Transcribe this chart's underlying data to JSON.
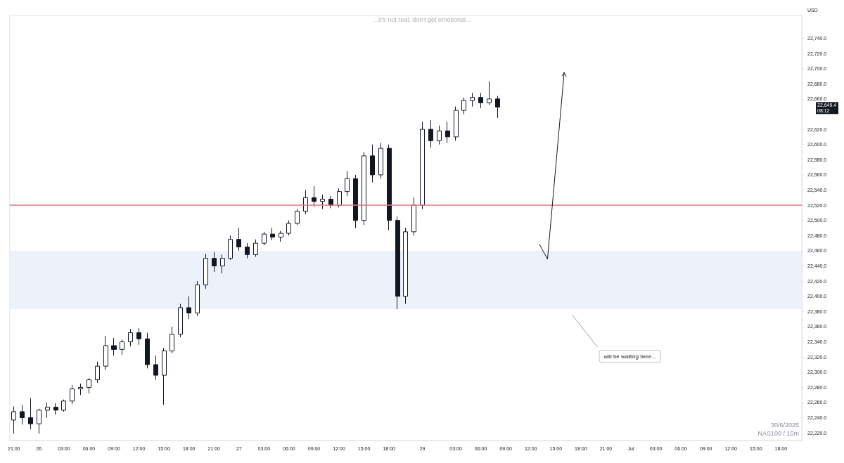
{
  "chart_data": {
    "type": "candlestick",
    "title": "...it's not real, don't get emotional...",
    "ylabel": "USD",
    "color": "#131722",
    "categories": [
      "21:00",
      null,
      null,
      "26",
      null,
      null,
      "03:00",
      null,
      null,
      "06:00",
      null,
      null,
      "09:00",
      null,
      null,
      "12:00",
      null,
      null,
      "15:00",
      null,
      null,
      "18:00",
      null,
      null,
      "21:00",
      null,
      null,
      "27",
      null,
      null,
      "03:00",
      null,
      null,
      "06:00",
      null,
      null,
      "09:00",
      null,
      null,
      "12:00",
      null,
      null,
      "15:00",
      null,
      null,
      "18:00",
      null,
      null,
      null,
      "29",
      null,
      null,
      null,
      "03:00",
      null,
      null,
      "06:00",
      null,
      null,
      "09:00",
      null,
      null,
      "12:00",
      null,
      null,
      "15:00",
      null,
      null,
      "18:00",
      null,
      null,
      "21:00",
      null,
      null,
      "Jul",
      null,
      null,
      "03:00",
      null,
      null,
      "06:00",
      null,
      null,
      "09:00",
      null,
      null,
      "12:00",
      null,
      null,
      "15:00",
      null,
      null,
      "18:00",
      null,
      null
    ],
    "ohlc": [
      [
        22237,
        22255,
        22219,
        22248
      ],
      [
        22248,
        22257,
        22231,
        22240
      ],
      [
        22240,
        22266,
        22225,
        22232
      ],
      [
        22232,
        22252,
        22219,
        22250
      ],
      [
        22250,
        22260,
        22240,
        22254
      ],
      [
        22254,
        22259,
        22244,
        22250
      ],
      [
        22250,
        22264,
        22248,
        22262
      ],
      [
        22262,
        22283,
        22258,
        22278
      ],
      [
        22278,
        22285,
        22270,
        22280
      ],
      [
        22280,
        22292,
        22272,
        22290
      ],
      [
        22290,
        22314,
        22286,
        22308
      ],
      [
        22308,
        22348,
        22303,
        22335
      ],
      [
        22335,
        22345,
        22322,
        22330
      ],
      [
        22330,
        22343,
        22323,
        22340
      ],
      [
        22340,
        22357,
        22334,
        22352
      ],
      [
        22352,
        22358,
        22336,
        22344
      ],
      [
        22344,
        22352,
        22305,
        22310
      ],
      [
        22310,
        22322,
        22290,
        22296
      ],
      [
        22296,
        22332,
        22257,
        22328
      ],
      [
        22328,
        22360,
        22325,
        22350
      ],
      [
        22350,
        22390,
        22346,
        22385
      ],
      [
        22385,
        22400,
        22370,
        22378
      ],
      [
        22378,
        22420,
        22374,
        22415
      ],
      [
        22415,
        22456,
        22410,
        22450
      ],
      [
        22450,
        22458,
        22432,
        22440
      ],
      [
        22440,
        22455,
        22430,
        22450
      ],
      [
        22450,
        22480,
        22448,
        22475
      ],
      [
        22475,
        22490,
        22460,
        22465
      ],
      [
        22465,
        22470,
        22450,
        22455
      ],
      [
        22455,
        22475,
        22452,
        22470
      ],
      [
        22470,
        22485,
        22467,
        22482
      ],
      [
        22482,
        22490,
        22474,
        22478
      ],
      [
        22478,
        22486,
        22472,
        22483
      ],
      [
        22483,
        22500,
        22480,
        22496
      ],
      [
        22496,
        22515,
        22494,
        22512
      ],
      [
        22512,
        22540,
        22508,
        22530
      ],
      [
        22530,
        22545,
        22518,
        22525
      ],
      [
        22525,
        22534,
        22515,
        22528
      ],
      [
        22528,
        22532,
        22516,
        22520
      ],
      [
        22520,
        22542,
        22517,
        22538
      ],
      [
        22538,
        22565,
        22532,
        22555
      ],
      [
        22555,
        22560,
        22490,
        22500
      ],
      [
        22500,
        22590,
        22494,
        22585
      ],
      [
        22585,
        22600,
        22550,
        22560
      ],
      [
        22560,
        22602,
        22555,
        22595
      ],
      [
        22595,
        22600,
        22487,
        22500
      ],
      [
        22500,
        22505,
        22383,
        22400
      ],
      [
        22400,
        22490,
        22390,
        22485
      ],
      [
        22485,
        22530,
        22480,
        22520
      ],
      [
        22520,
        22630,
        22515,
        22620
      ],
      [
        22620,
        22632,
        22596,
        22605
      ],
      [
        22605,
        22625,
        22600,
        22618
      ],
      [
        22618,
        22630,
        22602,
        22610
      ],
      [
        22610,
        22650,
        22605,
        22645
      ],
      [
        22645,
        22662,
        22640,
        22658
      ],
      [
        22658,
        22668,
        22650,
        22662
      ],
      [
        22662,
        22668,
        22648,
        22655
      ],
      [
        22655,
        22683,
        22652,
        22660
      ],
      [
        22660,
        22664,
        22635,
        22649.4
      ],
      null,
      null,
      null,
      null,
      null,
      null,
      null,
      null,
      null,
      null,
      null,
      null,
      null,
      null,
      null,
      null,
      null,
      null,
      null,
      null,
      null,
      null,
      null,
      null,
      null,
      null,
      null,
      null,
      null,
      null,
      null,
      null,
      null,
      null,
      null,
      null
    ],
    "ylim": [
      22210,
      22770
    ],
    "yticks": [
      {
        "value": 22220,
        "label": "22,220.0"
      },
      {
        "value": 22240,
        "label": "22,240.0"
      },
      {
        "value": 22260,
        "label": "22,260.0"
      },
      {
        "value": 22280,
        "label": "22,280.0"
      },
      {
        "value": 22300,
        "label": "22,300.0"
      },
      {
        "value": 22320,
        "label": "22,320.0"
      },
      {
        "value": 22340,
        "label": "22,340.0"
      },
      {
        "value": 22360,
        "label": "22,360.0"
      },
      {
        "value": 22380,
        "label": "22,380.0"
      },
      {
        "value": 22400,
        "label": "22,400.0"
      },
      {
        "value": 22420,
        "label": "22,420.0"
      },
      {
        "value": 22440,
        "label": "22,440.0"
      },
      {
        "value": 22460,
        "label": "22,460.0"
      },
      {
        "value": 22480,
        "label": "22,480.0"
      },
      {
        "value": 22500,
        "label": "22,500.0"
      },
      {
        "value": 22520,
        "label": "22,520.0"
      },
      {
        "value": 22540,
        "label": "22,540.0"
      },
      {
        "value": 22560,
        "label": "22,560.0"
      },
      {
        "value": 22580,
        "label": "22,580.0"
      },
      {
        "value": 22600,
        "label": "22,600.0"
      },
      {
        "value": 22620,
        "label": "22,620.0"
      },
      {
        "value": 22640,
        "label": null
      },
      {
        "value": 22660,
        "label": "22,660.0"
      },
      {
        "value": 22680,
        "label": "22,680.0"
      },
      {
        "value": 22700,
        "label": "22,700.0"
      },
      {
        "value": 22720,
        "label": "22,720.0"
      },
      {
        "value": 22740,
        "label": "22,740.0"
      }
    ],
    "grid": false,
    "ref_lines": [
      {
        "axis": "y",
        "value": 22520,
        "color": "#e57383"
      }
    ],
    "bands": [
      {
        "axis": "y",
        "from": 22383,
        "to": 22460,
        "color": "#e9edf7"
      }
    ],
    "annotations": [
      "will be waiting here...",
      "30/6/2025",
      "NAS100 / 15m",
      "22,649.4",
      "08:12"
    ]
  }
}
